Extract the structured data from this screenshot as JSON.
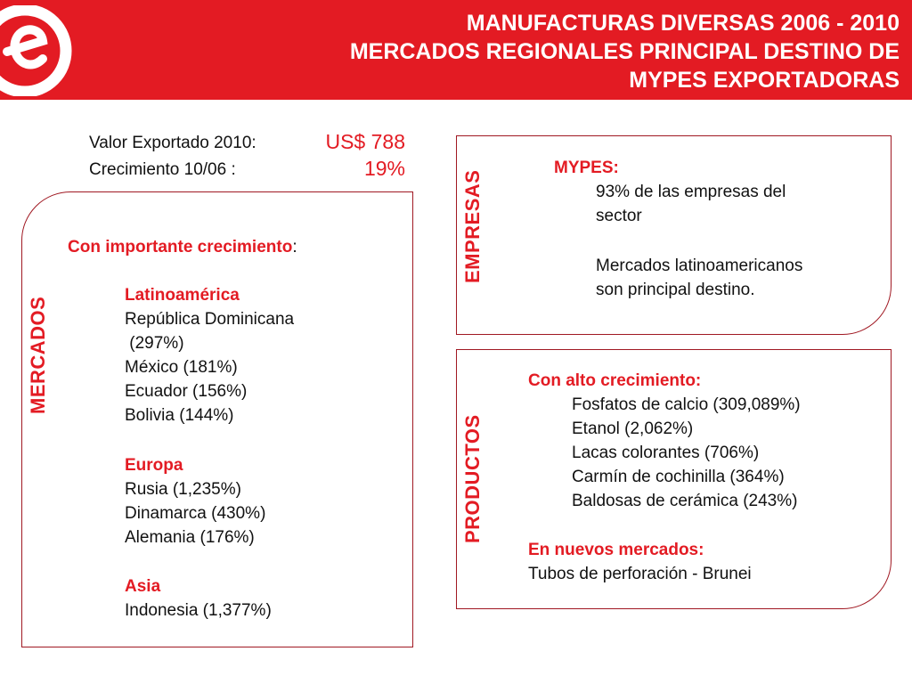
{
  "header": {
    "title_lines": [
      "MANUFACTURAS DIVERSAS 2006 - 2010",
      "MERCADOS REGIONALES PRINCIPAL DESTINO DE",
      "MYPES EXPORTADORAS"
    ],
    "logo_letter": "e"
  },
  "stats": {
    "valor_label": "Valor Exportado 2010:",
    "valor_value": "US$ 788",
    "crecimiento_label": "Crecimiento 10/06 :",
    "crecimiento_value": "19%"
  },
  "mercados": {
    "vertical_label": "MERCADOS",
    "heading": "Con importante crecimiento",
    "heading_colon": ":",
    "regions": [
      {
        "name": "Latinoamérica",
        "items": [
          "República Dominicana",
          " (297%)",
          "México (181%)",
          "Ecuador (156%)",
          "Bolivia (144%)"
        ]
      },
      {
        "name": "Europa",
        "items": [
          "Rusia (1,235%)",
          "Dinamarca (430%)",
          "Alemania (176%)"
        ]
      },
      {
        "name": "Asia",
        "items": [
          "Indonesia (1,377%)"
        ]
      }
    ]
  },
  "empresas": {
    "vertical_label": "EMPRESAS",
    "heading": "MYPES:",
    "lines": [
      "93% de las empresas del",
      "sector",
      "Mercados latinoamericanos",
      "son principal destino."
    ]
  },
  "productos": {
    "vertical_label": "PRODUCTOS",
    "heading": "Con alto crecimiento:",
    "items": [
      "Fosfatos de calcio (309,089%)",
      "Etanol (2,062%)",
      "Lacas colorantes (706%)",
      "Carmín de cochinilla (364%)",
      "Baldosas de cerámica (243%)"
    ],
    "new_heading": "En nuevos mercados:",
    "new_item": "Tubos de perforación - Brunei"
  },
  "colors": {
    "accent": "#e31b23",
    "border": "#a01822",
    "text": "#111111"
  }
}
